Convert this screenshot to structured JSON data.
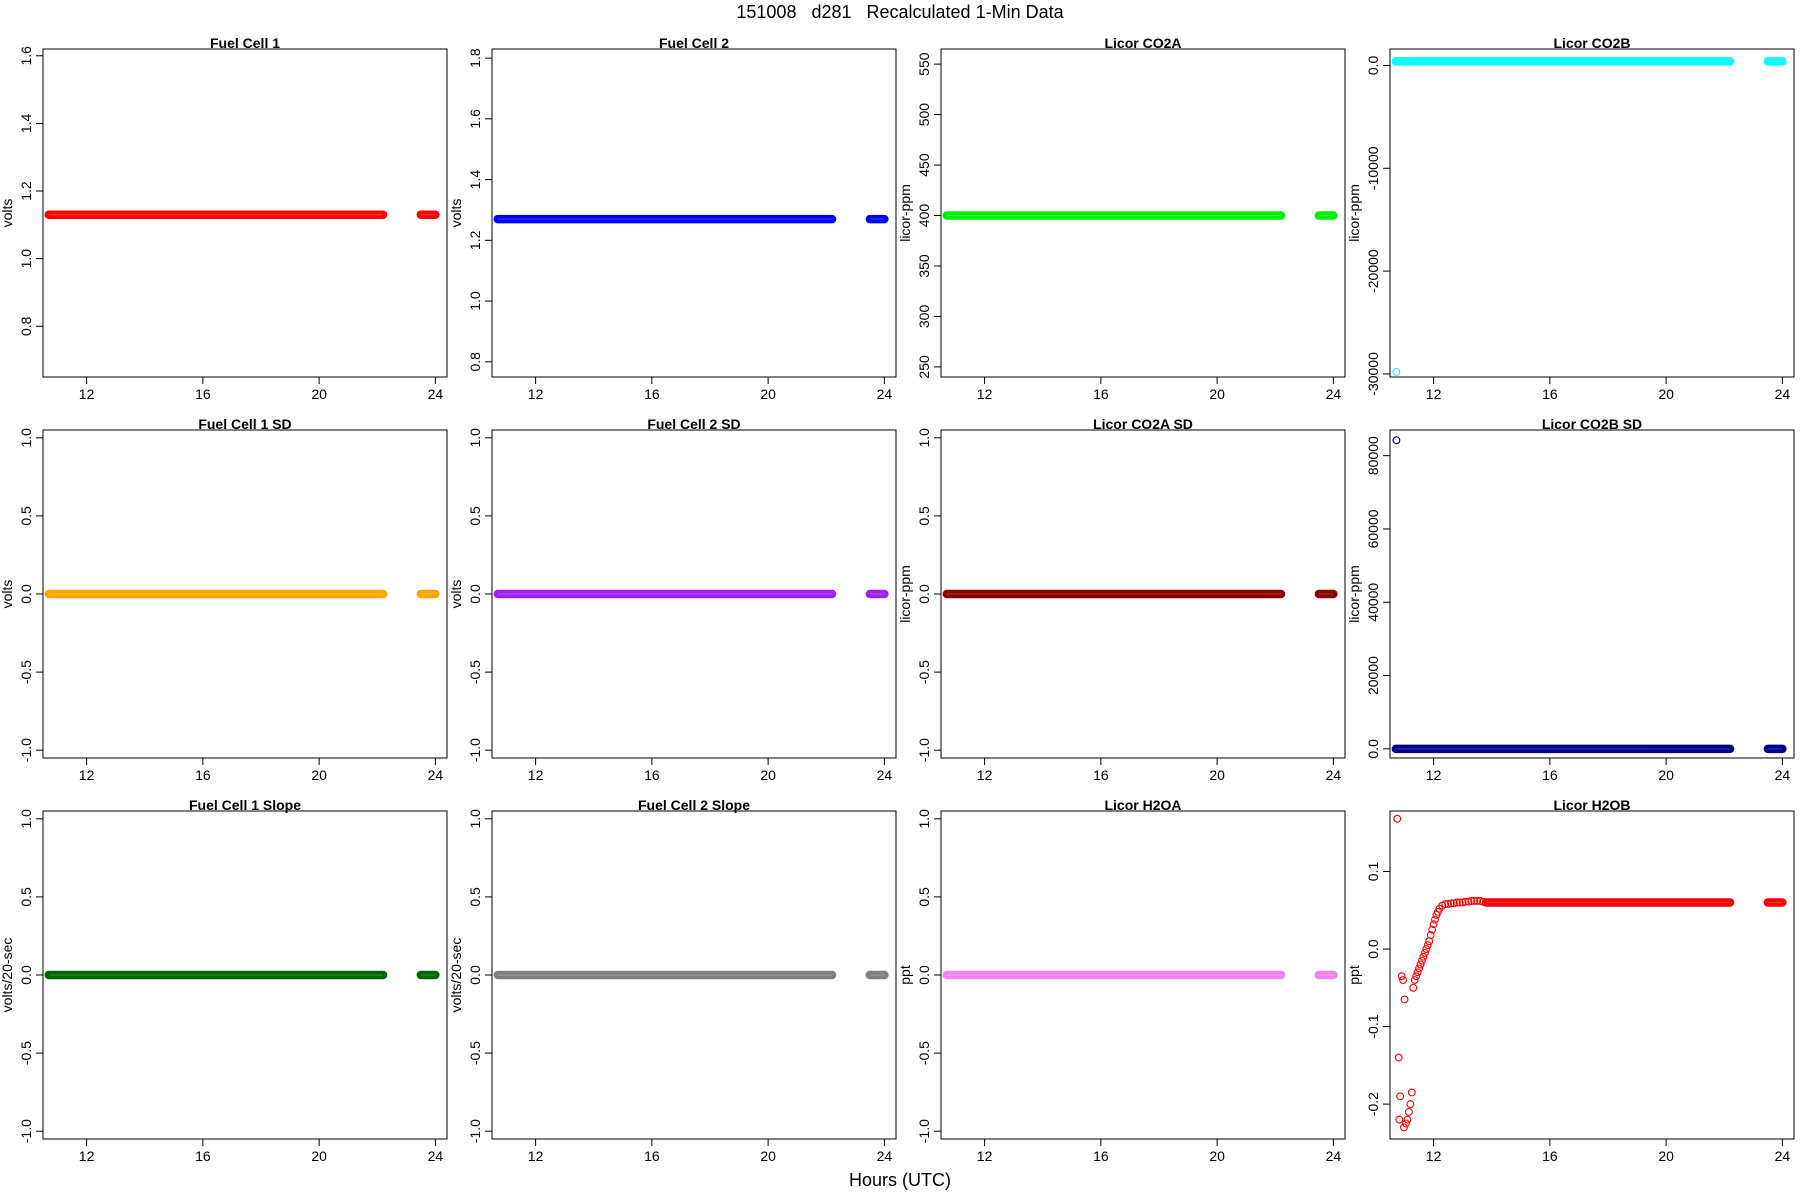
{
  "figure": {
    "title": "151008   d281   Recalculated 1-Min Data",
    "xlabel": "Hours (UTC)"
  },
  "chart_data": [
    {
      "type": "scatter",
      "title": "Fuel Cell 1",
      "ylabel": "volts",
      "color": "#ff0000",
      "xlim": [
        10.5,
        24.4
      ],
      "ylim": [
        0.65,
        1.62
      ],
      "xticks": [
        12,
        16,
        20,
        24
      ],
      "yticks": [
        0.8,
        1.0,
        1.2,
        1.4,
        1.6
      ],
      "segments": [
        {
          "x": [
            10.7,
            22.2
          ],
          "y": 1.13
        },
        {
          "x": [
            23.5,
            24.0
          ],
          "y": 1.13
        }
      ],
      "points": []
    },
    {
      "type": "scatter",
      "title": "Fuel Cell 2",
      "ylabel": "volts",
      "color": "#0000ff",
      "xlim": [
        10.5,
        24.4
      ],
      "ylim": [
        0.75,
        1.83
      ],
      "xticks": [
        12,
        16,
        20,
        24
      ],
      "yticks": [
        0.8,
        1.0,
        1.2,
        1.4,
        1.6,
        1.8
      ],
      "segments": [
        {
          "x": [
            10.7,
            22.2
          ],
          "y": 1.27
        },
        {
          "x": [
            23.5,
            24.0
          ],
          "y": 1.27
        }
      ],
      "points": []
    },
    {
      "type": "scatter",
      "title": "Licor CO2A",
      "ylabel": "licor-ppm",
      "color": "#00ee00",
      "xlim": [
        10.5,
        24.4
      ],
      "ylim": [
        240,
        565
      ],
      "xticks": [
        12,
        16,
        20,
        24
      ],
      "yticks": [
        250,
        300,
        350,
        400,
        450,
        500,
        550
      ],
      "segments": [
        {
          "x": [
            10.7,
            22.2
          ],
          "y": 400
        },
        {
          "x": [
            23.5,
            24.0
          ],
          "y": 400
        }
      ],
      "points": []
    },
    {
      "type": "scatter",
      "title": "Licor CO2B",
      "ylabel": "licor-ppm",
      "color": "#00ffff",
      "xlim": [
        10.5,
        24.4
      ],
      "ylim": [
        -30300,
        1600
      ],
      "xticks": [
        12,
        16,
        20,
        24
      ],
      "yticks": [
        -30000,
        -20000,
        -10000,
        0
      ],
      "segments": [
        {
          "x": [
            10.7,
            22.2
          ],
          "y": 400
        },
        {
          "x": [
            23.5,
            24.0
          ],
          "y": 400
        }
      ],
      "points": [
        {
          "x": 10.72,
          "y": -29800
        }
      ]
    },
    {
      "type": "scatter",
      "title": "Fuel Cell 1 SD",
      "ylabel": "volts",
      "color": "#ffa500",
      "xlim": [
        10.5,
        24.4
      ],
      "ylim": [
        -1.05,
        1.05
      ],
      "xticks": [
        12,
        16,
        20,
        24
      ],
      "yticks": [
        -1.0,
        -0.5,
        0.0,
        0.5,
        1.0
      ],
      "segments": [
        {
          "x": [
            10.7,
            22.2
          ],
          "y": 0
        },
        {
          "x": [
            23.5,
            24.0
          ],
          "y": 0
        }
      ],
      "points": []
    },
    {
      "type": "scatter",
      "title": "Fuel Cell 2 SD",
      "ylabel": "volts",
      "color": "#a020f0",
      "xlim": [
        10.5,
        24.4
      ],
      "ylim": [
        -1.05,
        1.05
      ],
      "xticks": [
        12,
        16,
        20,
        24
      ],
      "yticks": [
        -1.0,
        -0.5,
        0.0,
        0.5,
        1.0
      ],
      "segments": [
        {
          "x": [
            10.7,
            22.2
          ],
          "y": 0
        },
        {
          "x": [
            23.5,
            24.0
          ],
          "y": 0
        }
      ],
      "points": []
    },
    {
      "type": "scatter",
      "title": "Licor CO2A SD",
      "ylabel": "licor-ppm",
      "color": "#8b0000",
      "xlim": [
        10.5,
        24.4
      ],
      "ylim": [
        -1.05,
        1.05
      ],
      "xticks": [
        12,
        16,
        20,
        24
      ],
      "yticks": [
        -1.0,
        -0.5,
        0.0,
        0.5,
        1.0
      ],
      "segments": [
        {
          "x": [
            10.7,
            22.2
          ],
          "y": 0
        },
        {
          "x": [
            23.5,
            24.0
          ],
          "y": 0
        }
      ],
      "points": []
    },
    {
      "type": "scatter",
      "title": "Licor CO2B SD",
      "ylabel": "licor-ppm",
      "color": "#00008b",
      "xlim": [
        10.5,
        24.4
      ],
      "ylim": [
        -2500,
        87000
      ],
      "xticks": [
        12,
        16,
        20,
        24
      ],
      "yticks": [
        0,
        20000,
        40000,
        60000,
        80000
      ],
      "segments": [
        {
          "x": [
            10.7,
            22.2
          ],
          "y": 0
        },
        {
          "x": [
            23.5,
            24.0
          ],
          "y": 0
        }
      ],
      "points": [
        {
          "x": 10.72,
          "y": 84200
        }
      ]
    },
    {
      "type": "scatter",
      "title": "Fuel Cell 1 Slope",
      "ylabel": "volts/20-sec",
      "color": "#006400",
      "xlim": [
        10.5,
        24.4
      ],
      "ylim": [
        -1.05,
        1.05
      ],
      "xticks": [
        12,
        16,
        20,
        24
      ],
      "yticks": [
        -1.0,
        -0.5,
        0.0,
        0.5,
        1.0
      ],
      "segments": [
        {
          "x": [
            10.7,
            22.2
          ],
          "y": 0
        },
        {
          "x": [
            23.5,
            24.0
          ],
          "y": 0
        }
      ],
      "points": []
    },
    {
      "type": "scatter",
      "title": "Fuel Cell 2 Slope",
      "ylabel": "volts/20-sec",
      "color": "#808080",
      "xlim": [
        10.5,
        24.4
      ],
      "ylim": [
        -1.05,
        1.05
      ],
      "xticks": [
        12,
        16,
        20,
        24
      ],
      "yticks": [
        -1.0,
        -0.5,
        0.0,
        0.5,
        1.0
      ],
      "segments": [
        {
          "x": [
            10.7,
            22.2
          ],
          "y": 0
        },
        {
          "x": [
            23.5,
            24.0
          ],
          "y": 0
        }
      ],
      "points": []
    },
    {
      "type": "scatter",
      "title": "Licor H2OA",
      "ylabel": "ppt",
      "color": "#ee82ee",
      "xlim": [
        10.5,
        24.4
      ],
      "ylim": [
        -1.05,
        1.05
      ],
      "xticks": [
        12,
        16,
        20,
        24
      ],
      "yticks": [
        -1.0,
        -0.5,
        0.0,
        0.5,
        1.0
      ],
      "segments": [
        {
          "x": [
            10.7,
            22.2
          ],
          "y": 0
        },
        {
          "x": [
            23.5,
            24.0
          ],
          "y": 0
        }
      ],
      "points": []
    },
    {
      "type": "scatter",
      "title": "Licor H2OB",
      "ylabel": "ppt",
      "color": "#ff0000",
      "xlim": [
        10.5,
        24.4
      ],
      "ylim": [
        -0.245,
        0.178
      ],
      "xticks": [
        12,
        16,
        20,
        24
      ],
      "yticks": [
        -0.2,
        -0.1,
        0.0,
        0.1
      ],
      "segments": [
        {
          "x": [
            13.8,
            22.2
          ],
          "y": 0.06
        },
        {
          "x": [
            23.5,
            24.0
          ],
          "y": 0.06
        }
      ],
      "points": [
        {
          "x": 10.75,
          "y": 0.168
        },
        {
          "x": 10.8,
          "y": -0.14
        },
        {
          "x": 10.85,
          "y": -0.19
        },
        {
          "x": 10.82,
          "y": -0.22
        },
        {
          "x": 10.9,
          "y": -0.035
        },
        {
          "x": 10.95,
          "y": -0.04
        },
        {
          "x": 11.0,
          "y": -0.065
        },
        {
          "x": 10.98,
          "y": -0.23
        },
        {
          "x": 11.05,
          "y": -0.225
        },
        {
          "x": 11.1,
          "y": -0.22
        },
        {
          "x": 11.15,
          "y": -0.21
        },
        {
          "x": 11.2,
          "y": -0.2
        },
        {
          "x": 11.25,
          "y": -0.185
        },
        {
          "x": 11.3,
          "y": -0.05
        },
        {
          "x": 11.35,
          "y": -0.04
        },
        {
          "x": 11.4,
          "y": -0.035
        },
        {
          "x": 11.45,
          "y": -0.03
        },
        {
          "x": 11.5,
          "y": -0.025
        },
        {
          "x": 11.55,
          "y": -0.02
        },
        {
          "x": 11.6,
          "y": -0.015
        },
        {
          "x": 11.65,
          "y": -0.01
        },
        {
          "x": 11.7,
          "y": -0.005
        },
        {
          "x": 11.75,
          "y": 0.0
        },
        {
          "x": 11.8,
          "y": 0.005
        },
        {
          "x": 11.85,
          "y": 0.01
        },
        {
          "x": 11.9,
          "y": 0.018
        },
        {
          "x": 11.95,
          "y": 0.025
        },
        {
          "x": 12.0,
          "y": 0.032
        },
        {
          "x": 12.05,
          "y": 0.038
        },
        {
          "x": 12.1,
          "y": 0.044
        },
        {
          "x": 12.15,
          "y": 0.048
        },
        {
          "x": 12.2,
          "y": 0.052
        },
        {
          "x": 12.3,
          "y": 0.056
        },
        {
          "x": 12.4,
          "y": 0.058
        },
        {
          "x": 12.5,
          "y": 0.058
        },
        {
          "x": 12.6,
          "y": 0.059
        },
        {
          "x": 12.7,
          "y": 0.059
        },
        {
          "x": 12.8,
          "y": 0.06
        },
        {
          "x": 12.9,
          "y": 0.06
        },
        {
          "x": 13.0,
          "y": 0.06
        },
        {
          "x": 13.1,
          "y": 0.061
        },
        {
          "x": 13.2,
          "y": 0.061
        },
        {
          "x": 13.3,
          "y": 0.062
        },
        {
          "x": 13.4,
          "y": 0.062
        },
        {
          "x": 13.5,
          "y": 0.062
        },
        {
          "x": 13.6,
          "y": 0.062
        },
        {
          "x": 13.7,
          "y": 0.061
        }
      ]
    }
  ]
}
